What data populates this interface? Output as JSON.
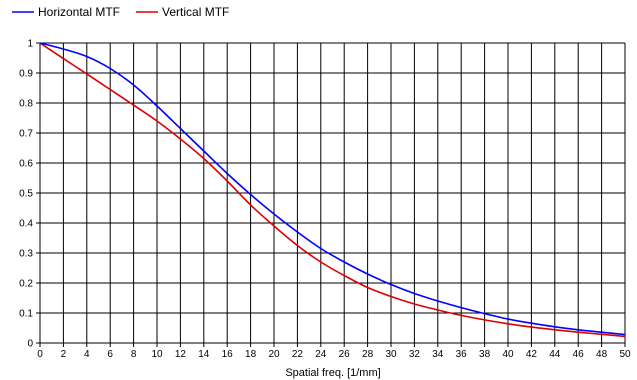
{
  "chart_data": {
    "type": "line",
    "title": "",
    "xlabel": "Spatial freq. [1/mm]",
    "ylabel": "",
    "xlim": [
      0,
      50
    ],
    "ylim": [
      0,
      1
    ],
    "grid": true,
    "legend_position": "top-left",
    "x_ticks": [
      "0",
      "2",
      "4",
      "6",
      "8",
      "10",
      "12",
      "14",
      "16",
      "18",
      "20",
      "22",
      "24",
      "26",
      "28",
      "30",
      "32",
      "34",
      "36",
      "38",
      "40",
      "42",
      "44",
      "46",
      "48",
      "50"
    ],
    "y_ticks": [
      "0",
      "0.1",
      "0.2",
      "0.3",
      "0.4",
      "0.5",
      "0.6",
      "0.7",
      "0.8",
      "0.9",
      "1"
    ],
    "series": [
      {
        "name": "Horizontal MTF",
        "color": "#0000ff",
        "x": [
          0,
          2,
          4,
          6,
          8,
          10,
          12,
          14,
          16,
          18,
          20,
          22,
          24,
          26,
          28,
          30,
          32,
          34,
          36,
          38,
          40,
          42,
          44,
          46,
          48,
          50
        ],
        "y": [
          1.0,
          0.98,
          0.955,
          0.915,
          0.86,
          0.79,
          0.715,
          0.64,
          0.565,
          0.495,
          0.43,
          0.37,
          0.315,
          0.27,
          0.23,
          0.195,
          0.165,
          0.14,
          0.118,
          0.098,
          0.08,
          0.066,
          0.054,
          0.044,
          0.036,
          0.028
        ]
      },
      {
        "name": "Vertical MTF",
        "color": "#dd0000",
        "x": [
          0,
          2,
          4,
          6,
          8,
          10,
          12,
          14,
          16,
          18,
          20,
          22,
          24,
          26,
          28,
          30,
          32,
          34,
          36,
          38,
          40,
          42,
          44,
          46,
          48,
          50
        ],
        "y": [
          1.0,
          0.948,
          0.897,
          0.845,
          0.793,
          0.74,
          0.68,
          0.615,
          0.54,
          0.46,
          0.39,
          0.325,
          0.27,
          0.225,
          0.185,
          0.155,
          0.13,
          0.11,
          0.092,
          0.077,
          0.064,
          0.053,
          0.044,
          0.036,
          0.029,
          0.022
        ]
      }
    ]
  }
}
